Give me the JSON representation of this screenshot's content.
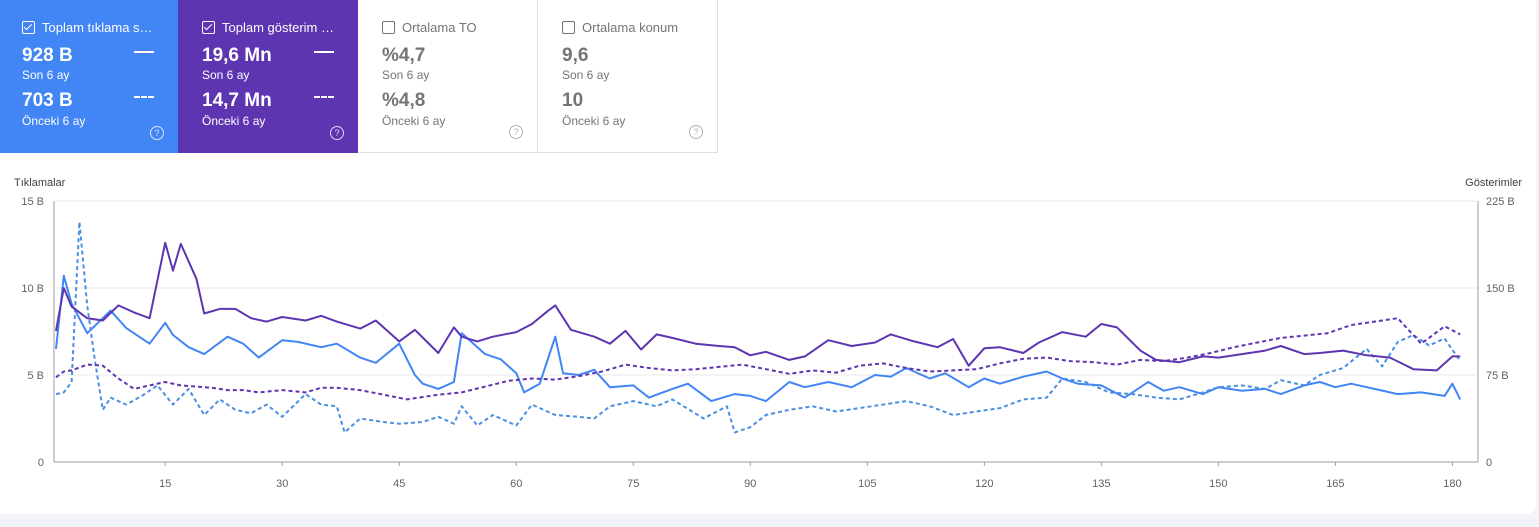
{
  "metrics": [
    {
      "title": "Toplam tıklama s…",
      "checked": true,
      "current": "928 B",
      "current_label": "Son 6 ay",
      "previous": "703 B",
      "previous_label": "Önceki 6 ay"
    },
    {
      "title": "Toplam gösterim …",
      "checked": true,
      "current": "19,6 Mn",
      "current_label": "Son 6 ay",
      "previous": "14,7 Mn",
      "previous_label": "Önceki 6 ay"
    },
    {
      "title": "Ortalama TO",
      "checked": false,
      "current": "%4,7",
      "current_label": "Son 6 ay",
      "previous": "%4,8",
      "previous_label": "Önceki 6 ay"
    },
    {
      "title": "Ortalama konum",
      "checked": false,
      "current": "9,6",
      "current_label": "Son 6 ay",
      "previous": "10",
      "previous_label": "Önceki 6 ay"
    }
  ],
  "help_glyph": "?",
  "colors": {
    "clicks": "#4285f4",
    "impressions": "#5e35b1",
    "clicks_prev": "#4a90e2",
    "impressions_prev": "#5e35b1"
  },
  "chart_data": {
    "type": "line",
    "ylabel_left": "Tıklamalar",
    "ylabel_right": "Gösterimler",
    "y_left_ticks": [
      "0",
      "5 B",
      "10 B",
      "15 B"
    ],
    "y_left_range": [
      0,
      15000
    ],
    "y_right_ticks": [
      "0",
      "75 B",
      "150 B",
      "225 B"
    ],
    "y_right_range": [
      0,
      225000
    ],
    "x_ticks": [
      15,
      30,
      45,
      60,
      75,
      90,
      105,
      120,
      135,
      150,
      165,
      180
    ],
    "x_range": [
      1,
      182
    ],
    "grid": true,
    "series": [
      {
        "name": "Tıklamalar (Son 6 ay)",
        "axis": "left",
        "style": "solid",
        "color": "#4285f4",
        "x": [
          1,
          2,
          3,
          5,
          8,
          10,
          13,
          15,
          16,
          18,
          20,
          23,
          25,
          27,
          30,
          32,
          35,
          37,
          40,
          42,
          45,
          47,
          48,
          50,
          52,
          53,
          56,
          58,
          60,
          61,
          63,
          65,
          66,
          68,
          70,
          72,
          75,
          77,
          80,
          82,
          85,
          88,
          90,
          92,
          95,
          97,
          100,
          103,
          106,
          108,
          110,
          113,
          115,
          118,
          120,
          122,
          125,
          128,
          130,
          132,
          135,
          138,
          141,
          143,
          145,
          148,
          150,
          153,
          156,
          158,
          161,
          163,
          165,
          167,
          170,
          173,
          176,
          179,
          180,
          181
        ],
        "y": [
          6500,
          10700,
          9100,
          7400,
          8700,
          7700,
          6800,
          8000,
          7300,
          6600,
          6200,
          7200,
          6800,
          6000,
          7000,
          6900,
          6600,
          6800,
          6000,
          5700,
          6800,
          5000,
          4500,
          4200,
          4600,
          7400,
          6200,
          5900,
          5100,
          4000,
          4500,
          7200,
          5100,
          5000,
          5300,
          4300,
          4400,
          3700,
          4200,
          4500,
          3500,
          3900,
          3800,
          3500,
          4600,
          4300,
          4600,
          4300,
          5000,
          4900,
          5400,
          4800,
          5100,
          4300,
          4800,
          4500,
          4900,
          5200,
          4800,
          4500,
          4400,
          3700,
          4600,
          4100,
          4300,
          3900,
          4300,
          4100,
          4200,
          3900,
          4400,
          4600,
          4300,
          4500,
          4200,
          3900,
          4000,
          3800,
          4500,
          3600
        ]
      },
      {
        "name": "Tıklamalar (Önceki 6 ay)",
        "axis": "left",
        "style": "dashed",
        "color": "#4a90e2",
        "x": [
          1,
          2,
          3,
          4,
          5,
          6,
          7,
          8,
          10,
          12,
          14,
          16,
          18,
          20,
          22,
          24,
          26,
          28,
          30,
          33,
          35,
          37,
          38,
          40,
          43,
          45,
          48,
          50,
          52,
          53,
          55,
          57,
          60,
          62,
          65,
          68,
          70,
          72,
          75,
          78,
          80,
          84,
          87,
          88,
          90,
          92,
          95,
          98,
          101,
          104,
          107,
          110,
          113,
          116,
          119,
          122,
          125,
          128,
          130,
          133,
          136,
          139,
          142,
          145,
          148,
          150,
          153,
          156,
          158,
          161,
          163,
          166,
          169,
          171,
          173,
          175,
          177,
          179,
          181
        ],
        "y": [
          3900,
          4000,
          4600,
          13800,
          9000,
          5800,
          3000,
          3700,
          3300,
          3800,
          4400,
          3300,
          4200,
          2700,
          3600,
          3000,
          2800,
          3300,
          2600,
          3900,
          3300,
          3200,
          1700,
          2500,
          2300,
          2200,
          2300,
          2600,
          2200,
          3200,
          2100,
          2700,
          2100,
          3300,
          2700,
          2600,
          2500,
          3200,
          3500,
          3200,
          3600,
          2500,
          3200,
          1700,
          2000,
          2700,
          3000,
          3200,
          2900,
          3100,
          3300,
          3500,
          3200,
          2700,
          2900,
          3100,
          3600,
          3700,
          4800,
          4600,
          4000,
          3900,
          3700,
          3600,
          4000,
          4300,
          4400,
          4200,
          4700,
          4400,
          5000,
          5400,
          6500,
          5500,
          6900,
          7300,
          6700,
          7100,
          5800
        ]
      },
      {
        "name": "Gösterimler (Son 6 ay)",
        "axis": "right",
        "style": "solid",
        "color": "#5e35b1",
        "x": [
          1,
          2,
          3,
          5,
          7,
          9,
          11,
          13,
          15,
          16,
          17,
          19,
          20,
          22,
          24,
          26,
          28,
          30,
          33,
          35,
          37,
          40,
          42,
          45,
          47,
          50,
          52,
          53,
          55,
          57,
          60,
          62,
          64,
          65,
          67,
          70,
          72,
          74,
          76,
          78,
          80,
          83,
          86,
          88,
          90,
          92,
          95,
          97,
          100,
          103,
          106,
          108,
          111,
          114,
          116,
          118,
          120,
          122,
          125,
          127,
          130,
          133,
          135,
          137,
          140,
          142,
          145,
          148,
          150,
          153,
          156,
          158,
          161,
          163,
          166,
          169,
          172,
          175,
          178,
          180,
          181
        ],
        "y": [
          113000,
          150000,
          134000,
          124000,
          122000,
          135000,
          129000,
          124000,
          189000,
          165000,
          188000,
          158000,
          128000,
          132000,
          132000,
          124000,
          121000,
          125000,
          122000,
          126000,
          121000,
          115000,
          122000,
          104000,
          114000,
          94000,
          116000,
          108000,
          104000,
          108000,
          112000,
          119000,
          130000,
          135000,
          114000,
          108000,
          102000,
          113000,
          97000,
          110000,
          107000,
          102000,
          100000,
          99000,
          92000,
          95000,
          88000,
          91000,
          105000,
          100000,
          103000,
          110000,
          104000,
          99000,
          106000,
          83000,
          98000,
          99000,
          94000,
          103000,
          112000,
          108000,
          119000,
          116000,
          96000,
          88000,
          86000,
          91000,
          90000,
          93000,
          96000,
          100000,
          93000,
          94000,
          96000,
          92000,
          90000,
          80000,
          79000,
          91000,
          91000
        ]
      },
      {
        "name": "Gösterimler (Önceki 6 ay)",
        "axis": "right",
        "style": "dashed",
        "color": "#5e35b1",
        "x": [
          1,
          2,
          3,
          5,
          7,
          9,
          11,
          13,
          15,
          17,
          19,
          21,
          23,
          25,
          27,
          30,
          33,
          35,
          37,
          40,
          43,
          46,
          48,
          50,
          53,
          56,
          59,
          62,
          65,
          68,
          71,
          74,
          77,
          80,
          83,
          86,
          89,
          92,
          95,
          98,
          101,
          104,
          107,
          110,
          113,
          116,
          119,
          122,
          125,
          128,
          131,
          134,
          137,
          140,
          143,
          146,
          149,
          152,
          155,
          158,
          161,
          164,
          167,
          170,
          173,
          176,
          179,
          181
        ],
        "y": [
          73000,
          78000,
          79000,
          84000,
          83000,
          72000,
          63000,
          66000,
          69000,
          66000,
          65000,
          64000,
          62000,
          62000,
          60000,
          62000,
          60000,
          64000,
          64000,
          62000,
          58000,
          54000,
          56000,
          58000,
          60000,
          65000,
          70000,
          72000,
          71000,
          74000,
          78000,
          84000,
          81000,
          79000,
          80000,
          82000,
          84000,
          80000,
          76000,
          79000,
          77000,
          83000,
          85000,
          81000,
          78000,
          79000,
          80000,
          85000,
          89000,
          90000,
          87000,
          86000,
          84000,
          88000,
          87000,
          90000,
          94000,
          99000,
          103000,
          107000,
          109000,
          111000,
          118000,
          121000,
          124000,
          102000,
          117000,
          110000
        ]
      }
    ]
  }
}
